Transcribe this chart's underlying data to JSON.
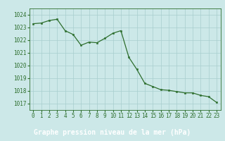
{
  "x": [
    0,
    1,
    2,
    3,
    4,
    5,
    6,
    7,
    8,
    9,
    10,
    11,
    12,
    13,
    14,
    15,
    16,
    17,
    18,
    19,
    20,
    21,
    22,
    23
  ],
  "y": [
    1023.3,
    1023.35,
    1023.55,
    1023.65,
    1022.75,
    1022.45,
    1021.6,
    1021.85,
    1021.8,
    1022.15,
    1022.55,
    1022.75,
    1020.65,
    1019.7,
    1018.6,
    1018.35,
    1018.1,
    1018.05,
    1017.95,
    1017.85,
    1017.85,
    1017.65,
    1017.55,
    1017.1
  ],
  "line_color": "#2d6e2d",
  "marker_color": "#2d6e2d",
  "bg_color": "#cce8e8",
  "grid_color": "#a8cece",
  "footer_bg": "#2d6e2d",
  "footer_text_color": "#ffffff",
  "title": "Graphe pression niveau de la mer (hPa)",
  "ylim": [
    1016.5,
    1024.5
  ],
  "yticks": [
    1017,
    1018,
    1019,
    1020,
    1021,
    1022,
    1023,
    1024
  ],
  "xticks": [
    0,
    1,
    2,
    3,
    4,
    5,
    6,
    7,
    8,
    9,
    10,
    11,
    12,
    13,
    14,
    15,
    16,
    17,
    18,
    19,
    20,
    21,
    22,
    23
  ],
  "title_fontsize": 7.0,
  "tick_fontsize": 5.5
}
